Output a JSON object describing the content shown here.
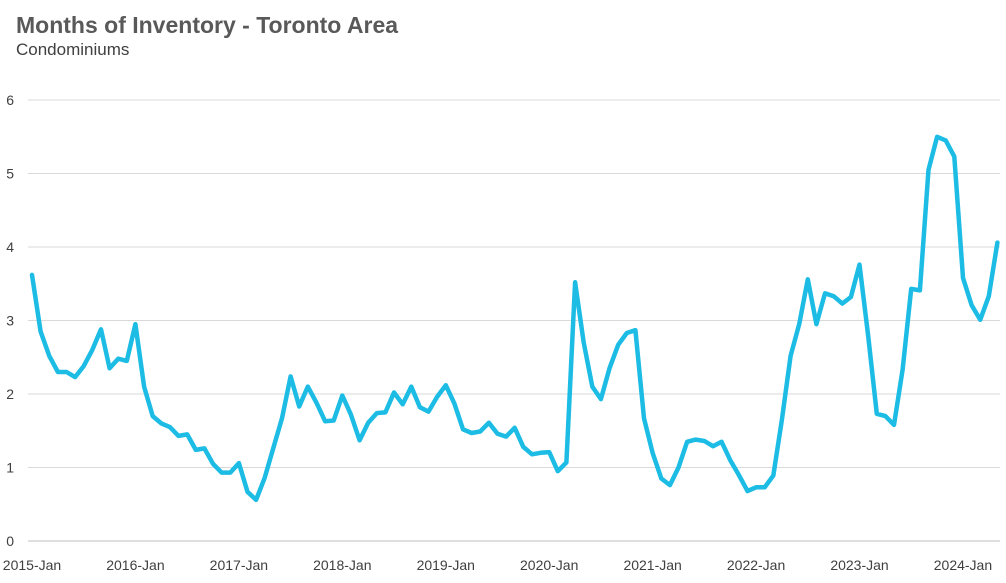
{
  "chart_data": {
    "type": "line",
    "title": "Months of Inventory - Toronto Area",
    "subtitle": "Condominiums",
    "xlabel": "",
    "ylabel": "",
    "ylim": [
      0,
      6
    ],
    "yticks": [
      "0",
      "1",
      "2",
      "3",
      "4",
      "5",
      "6"
    ],
    "xticks": [
      "2015-Jan",
      "2016-Jan",
      "2017-Jan",
      "2018-Jan",
      "2019-Jan",
      "2020-Jan",
      "2021-Jan",
      "2022-Jan",
      "2023-Jan",
      "2024-Jan"
    ],
    "grid": true,
    "line_color": "#1CBCE4",
    "series": [
      {
        "values": [
          3.62,
          2.85,
          2.52,
          2.3,
          2.3,
          2.23,
          2.38,
          2.6,
          2.88,
          2.35,
          2.48,
          2.45,
          2.95,
          2.1,
          1.7,
          1.6,
          1.55,
          1.43,
          1.45,
          1.24,
          1.26,
          1.05,
          0.93,
          0.93,
          1.06,
          0.67,
          0.56,
          0.86,
          1.27,
          1.67,
          2.24,
          1.83,
          2.1,
          1.88,
          1.63,
          1.64,
          1.98,
          1.72,
          1.37,
          1.61,
          1.74,
          1.75,
          2.02,
          1.86,
          2.1,
          1.82,
          1.76,
          1.96,
          2.12,
          1.87,
          1.52,
          1.47,
          1.49,
          1.61,
          1.46,
          1.42,
          1.54,
          1.28,
          1.18,
          1.2,
          1.21,
          0.95,
          1.07,
          3.52,
          2.7,
          2.1,
          1.93,
          2.35,
          2.67,
          2.83,
          2.87,
          1.67,
          1.2,
          0.85,
          0.76,
          1.0,
          1.35,
          1.38,
          1.36,
          1.29,
          1.35,
          1.1,
          0.9,
          0.68,
          0.73,
          0.73,
          0.89,
          1.65,
          2.52,
          2.95,
          3.56,
          2.95,
          3.37,
          3.33,
          3.23,
          3.32,
          3.76,
          2.8,
          1.73,
          1.7,
          1.58,
          2.33,
          3.43,
          3.41,
          5.05,
          5.5,
          5.45,
          5.23,
          3.58,
          3.21,
          3.01,
          3.33,
          4.06
        ]
      }
    ]
  }
}
